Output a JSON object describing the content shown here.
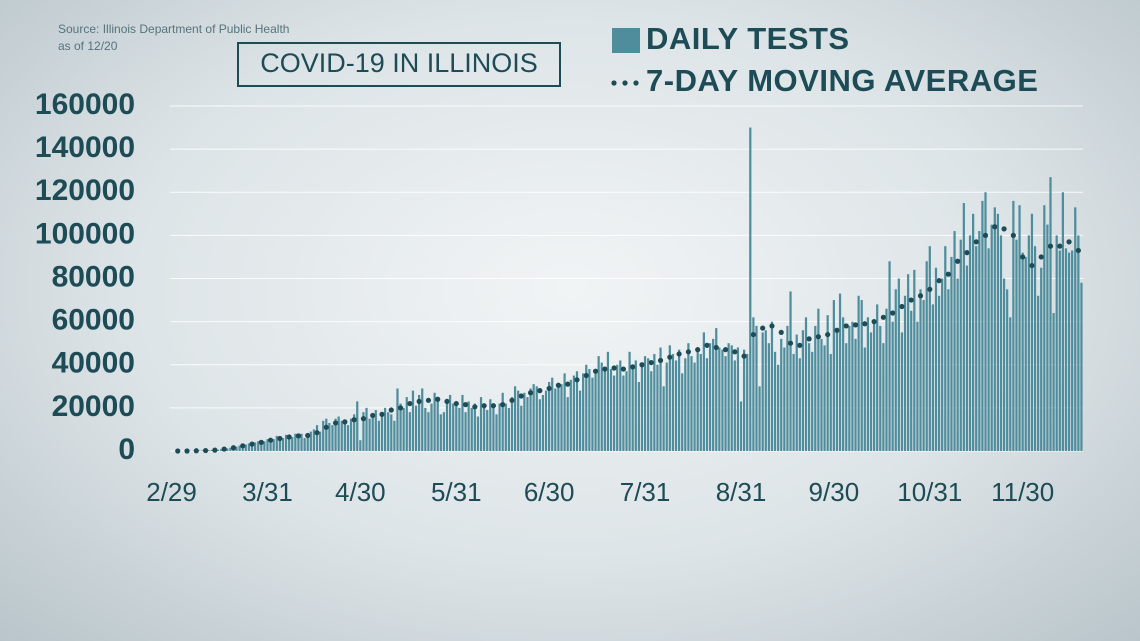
{
  "chart_data": {
    "type": "bar",
    "title": "COVID-19 IN ILLINOIS",
    "source": "Source: Illinois Department of Public Health",
    "note": "as of 12/20",
    "categories": [
      "2/29",
      null,
      null,
      null,
      null,
      null,
      null,
      null,
      null,
      null,
      null,
      null,
      null,
      null,
      null,
      null,
      null,
      null,
      null,
      null,
      null,
      null,
      null,
      null,
      null,
      null,
      null,
      null,
      null,
      null,
      null,
      "3/31",
      null,
      null,
      null,
      null,
      null,
      null,
      null,
      null,
      null,
      null,
      null,
      null,
      null,
      null,
      null,
      null,
      null,
      null,
      null,
      null,
      null,
      null,
      null,
      null,
      null,
      null,
      null,
      null,
      null,
      "4/30",
      null,
      null,
      null,
      null,
      null,
      null,
      null,
      null,
      null,
      null,
      null,
      null,
      null,
      null,
      null,
      null,
      null,
      null,
      null,
      null,
      null,
      null,
      null,
      null,
      null,
      null,
      null,
      null,
      null,
      null,
      "5/31",
      null,
      null,
      null,
      null,
      null,
      null,
      null,
      null,
      null,
      null,
      null,
      null,
      null,
      null,
      null,
      null,
      null,
      null,
      null,
      null,
      null,
      null,
      null,
      null,
      null,
      null,
      null,
      null,
      null,
      "6/30",
      null,
      null,
      null,
      null,
      null,
      null,
      null,
      null,
      null,
      null,
      null,
      null,
      null,
      null,
      null,
      null,
      null,
      null,
      null,
      null,
      null,
      null,
      null,
      null,
      null,
      null,
      null,
      null,
      null,
      null,
      "7/31",
      null,
      null,
      null,
      null,
      null,
      null,
      null,
      null,
      null,
      null,
      null,
      null,
      null,
      null,
      null,
      null,
      null,
      null,
      null,
      null,
      null,
      null,
      null,
      null,
      null,
      null,
      null,
      null,
      null,
      null,
      "8/31",
      null,
      null,
      null,
      null,
      null,
      null,
      null,
      null,
      null,
      null,
      null,
      null,
      null,
      null,
      null,
      null,
      null,
      null,
      null,
      null,
      null,
      null,
      null,
      null,
      null,
      null,
      null,
      null,
      null,
      "9/30",
      null,
      null,
      null,
      null,
      null,
      null,
      null,
      null,
      null,
      null,
      null,
      null,
      null,
      null,
      null,
      null,
      null,
      null,
      null,
      null,
      null,
      null,
      null,
      null,
      null,
      null,
      null,
      null,
      null,
      null,
      "10/31",
      null,
      null,
      null,
      null,
      null,
      null,
      null,
      null,
      null,
      null,
      null,
      null,
      null,
      null,
      null,
      null,
      null,
      null,
      null,
      null,
      null,
      null,
      null,
      null,
      null,
      null,
      null,
      null,
      null,
      "11/30",
      null,
      null,
      null,
      null,
      null,
      null,
      null,
      null,
      null,
      null,
      null,
      null,
      null,
      null,
      null,
      null,
      null,
      null,
      null
    ],
    "series": [
      {
        "name": "DAILY TESTS",
        "type": "bar",
        "color": "#4f8d9c",
        "values": [
          0,
          0,
          0,
          0,
          0,
          0,
          100,
          100,
          200,
          200,
          300,
          300,
          400,
          500,
          500,
          600,
          800,
          1000,
          1200,
          1500,
          1800,
          2000,
          2500,
          2800,
          3000,
          3500,
          3000,
          4000,
          4500,
          5000,
          4500,
          5500,
          6000,
          5500,
          7000,
          6500,
          6000,
          7500,
          7000,
          6500,
          8000,
          7500,
          8000,
          6000,
          7500,
          9000,
          10000,
          12000,
          9000,
          14000,
          15000,
          13000,
          12000,
          15000,
          16000,
          14000,
          13000,
          12000,
          15000,
          17000,
          23000,
          5000,
          18000,
          20000,
          15000,
          16000,
          19000,
          14000,
          17000,
          20000,
          18000,
          17000,
          14000,
          29000,
          22000,
          20000,
          25000,
          18000,
          28000,
          21000,
          26000,
          29000,
          20000,
          18000,
          22000,
          27000,
          25000,
          17000,
          18000,
          24000,
          26000,
          22000,
          21000,
          20000,
          26000,
          18000,
          23000,
          20000,
          22000,
          16000,
          25000,
          22000,
          19000,
          24000,
          21000,
          17000,
          22000,
          27000,
          22000,
          20000,
          25000,
          30000,
          28000,
          21000,
          27000,
          25000,
          29000,
          31000,
          30000,
          24000,
          26000,
          28000,
          32000,
          34000,
          29000,
          30000,
          31000,
          36000,
          25000,
          33000,
          35000,
          37000,
          28000,
          36000,
          40000,
          38000,
          34000,
          36000,
          44000,
          41000,
          39000,
          46000,
          38000,
          35000,
          40000,
          42000,
          35000,
          37000,
          46000,
          38000,
          42000,
          32000,
          40000,
          44000,
          43000,
          37000,
          45000,
          40000,
          48000,
          30000,
          41000,
          49000,
          45000,
          42000,
          47000,
          36000,
          43000,
          50000,
          44000,
          41000,
          46000,
          45000,
          55000,
          43000,
          50000,
          52000,
          57000,
          48000,
          47000,
          44000,
          50000,
          49000,
          42000,
          48000,
          23000,
          47000,
          45000,
          150000,
          62000,
          58000,
          30000,
          55000,
          56000,
          50000,
          60000,
          46000,
          40000,
          52000,
          48000,
          58000,
          74000,
          45000,
          54000,
          43000,
          56000,
          62000,
          50000,
          46000,
          58000,
          66000,
          52000,
          49000,
          63000,
          45000,
          70000,
          55000,
          73000,
          62000,
          50000,
          58000,
          60000,
          52000,
          72000,
          70000,
          48000,
          62000,
          55000,
          60000,
          68000,
          58000,
          50000,
          66000,
          88000,
          60000,
          75000,
          80000,
          55000,
          72000,
          82000,
          65000,
          84000,
          60000,
          75000,
          70000,
          88000,
          95000,
          68000,
          85000,
          72000,
          80000,
          95000,
          75000,
          90000,
          102000,
          80000,
          98000,
          115000,
          86000,
          100000,
          110000,
          95000,
          102000,
          116000,
          120000,
          94000,
          105000,
          113000,
          110000,
          100000,
          80000,
          75000,
          62000,
          116000,
          98000,
          114000,
          92000,
          90000,
          100000,
          110000,
          95000,
          72000,
          85000,
          114000,
          105000,
          127000,
          64000,
          100000,
          93000,
          120000,
          94000,
          92000,
          93000,
          113000,
          100000,
          78000
        ]
      },
      {
        "name": "7-DAY MOVING AVERAGE",
        "type": "dot",
        "color": "#1d4b56",
        "values": [
          null,
          null,
          0,
          null,
          null,
          0,
          null,
          null,
          100,
          null,
          null,
          200,
          null,
          null,
          400,
          null,
          null,
          900,
          null,
          null,
          1500,
          null,
          null,
          2400,
          null,
          null,
          3200,
          null,
          null,
          4000,
          null,
          null,
          5000,
          null,
          null,
          5800,
          null,
          null,
          6500,
          null,
          null,
          7000,
          null,
          null,
          7200,
          null,
          null,
          8500,
          null,
          null,
          11000,
          null,
          null,
          13000,
          null,
          null,
          13500,
          null,
          null,
          14500,
          null,
          null,
          15000,
          null,
          null,
          16500,
          null,
          null,
          17000,
          null,
          null,
          19000,
          null,
          null,
          20000,
          null,
          null,
          22000,
          null,
          null,
          23000,
          null,
          null,
          23500,
          null,
          null,
          24000,
          null,
          null,
          23000,
          null,
          null,
          22000,
          null,
          null,
          21500,
          null,
          null,
          20500,
          null,
          null,
          21000,
          null,
          null,
          21000,
          null,
          null,
          21500,
          null,
          null,
          23500,
          null,
          null,
          25500,
          null,
          null,
          27000,
          null,
          null,
          28000,
          null,
          null,
          29000,
          null,
          null,
          30500,
          null,
          null,
          31000,
          null,
          null,
          33000,
          null,
          null,
          35000,
          null,
          null,
          37000,
          null,
          null,
          38000,
          null,
          null,
          38500,
          null,
          null,
          38000,
          null,
          null,
          39000,
          null,
          null,
          40000,
          null,
          null,
          41000,
          null,
          null,
          42000,
          null,
          null,
          43500,
          null,
          null,
          45000,
          null,
          null,
          46000,
          null,
          null,
          47000,
          null,
          null,
          49000,
          null,
          null,
          48000,
          null,
          null,
          47000,
          null,
          null,
          46000,
          null,
          null,
          44000,
          null,
          null,
          54000,
          null,
          null,
          57000,
          null,
          null,
          58000,
          null,
          null,
          55000,
          null,
          null,
          50000,
          null,
          null,
          49000,
          null,
          null,
          52000,
          null,
          null,
          53000,
          null,
          null,
          54000,
          null,
          null,
          56000,
          null,
          null,
          58000,
          null,
          null,
          58500,
          null,
          null,
          59000,
          null,
          null,
          60000,
          null,
          null,
          62000,
          null,
          null,
          64000,
          null,
          null,
          67000,
          null,
          null,
          70000,
          null,
          null,
          72000,
          null,
          null,
          75000,
          null,
          null,
          79000,
          null,
          null,
          82000,
          null,
          null,
          88000,
          null,
          null,
          92000,
          null,
          null,
          97000,
          null,
          null,
          100000,
          null,
          null,
          104000,
          null,
          null,
          103000,
          null,
          null,
          100000,
          null,
          null,
          90000,
          null,
          null,
          86000,
          null,
          null,
          90000,
          null,
          null,
          95000,
          null,
          null,
          95000,
          null,
          null,
          97000,
          null,
          null,
          93000,
          null
        ]
      }
    ],
    "ylim": [
      0,
      160000
    ],
    "yticks": [
      0,
      20000,
      40000,
      60000,
      80000,
      100000,
      120000,
      140000,
      160000
    ],
    "grid": true
  }
}
